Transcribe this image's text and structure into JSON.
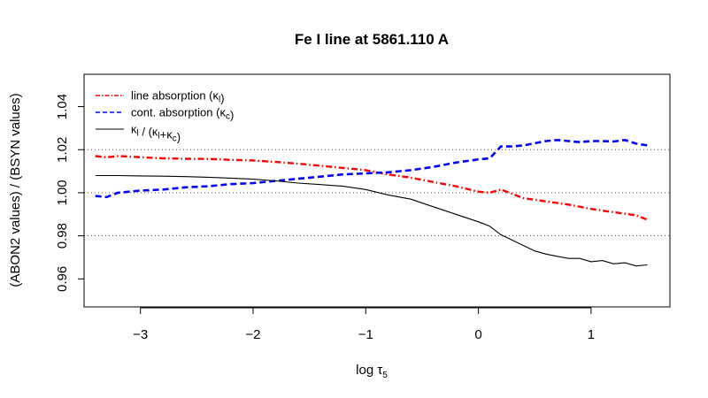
{
  "chart_data": {
    "type": "line",
    "title": "Fe I line at 5861.110 A",
    "xlabel": "log τ5",
    "ylabel": "(ABON2 values) / (BSYN values)",
    "xlim": [
      -3.5,
      1.7
    ],
    "ylim": [
      0.947,
      1.055
    ],
    "xticks": [
      -3,
      -2,
      -1,
      0,
      1
    ],
    "xtick_labels": [
      "−3",
      "−2",
      "−1",
      "0",
      "1"
    ],
    "yticks": [
      0.96,
      0.98,
      1.0,
      1.02,
      1.04
    ],
    "ytick_labels": [
      "0.96",
      "0.98",
      "1.00",
      "1.02",
      "1.04"
    ],
    "reference_lines": [
      0.98,
      1.0,
      1.02
    ],
    "legend_position": "top-left",
    "series": [
      {
        "name": "line absorption (κl)",
        "color": "#ff0000",
        "style": "dashdot",
        "x": [
          -3.4,
          -3.3,
          -3.2,
          -3.1,
          -3.0,
          -2.8,
          -2.6,
          -2.4,
          -2.2,
          -2.0,
          -1.8,
          -1.6,
          -1.4,
          -1.2,
          -1.0,
          -0.8,
          -0.6,
          -0.4,
          -0.2,
          0.0,
          0.1,
          0.2,
          0.3,
          0.4,
          0.6,
          0.8,
          1.0,
          1.2,
          1.4,
          1.5
        ],
        "y": [
          1.017,
          1.0165,
          1.017,
          1.0168,
          1.0165,
          1.016,
          1.0158,
          1.0157,
          1.0153,
          1.015,
          1.0143,
          1.0135,
          1.0125,
          1.0115,
          1.0105,
          1.0085,
          1.007,
          1.005,
          1.003,
          1.0005,
          1.0,
          1.0015,
          0.9995,
          0.9975,
          0.996,
          0.9945,
          0.9925,
          0.991,
          0.9895,
          0.9875
        ]
      },
      {
        "name": "cont. absorption (κc)",
        "color": "#0000ff",
        "style": "dashed",
        "x": [
          -3.4,
          -3.3,
          -3.2,
          -3.0,
          -2.8,
          -2.6,
          -2.4,
          -2.2,
          -2.0,
          -1.8,
          -1.6,
          -1.4,
          -1.2,
          -1.0,
          -0.8,
          -0.6,
          -0.4,
          -0.2,
          0.0,
          0.1,
          0.2,
          0.3,
          0.4,
          0.6,
          0.7,
          0.8,
          0.9,
          1.0,
          1.1,
          1.2,
          1.3,
          1.4,
          1.5
        ],
        "y": [
          0.9985,
          0.998,
          1.0,
          1.001,
          1.0015,
          1.0025,
          1.003,
          1.004,
          1.0045,
          1.0055,
          1.0065,
          1.0075,
          1.0085,
          1.009,
          1.0095,
          1.0105,
          1.012,
          1.014,
          1.0155,
          1.016,
          1.0215,
          1.0215,
          1.022,
          1.024,
          1.0245,
          1.024,
          1.0235,
          1.024,
          1.024,
          1.0238,
          1.0245,
          1.0228,
          1.022
        ]
      },
      {
        "name": "κl / (κl+κc)",
        "color": "#000000",
        "style": "solid",
        "x": [
          -3.4,
          -3.2,
          -3.0,
          -2.8,
          -2.6,
          -2.4,
          -2.2,
          -2.0,
          -1.8,
          -1.6,
          -1.4,
          -1.2,
          -1.0,
          -0.8,
          -0.6,
          -0.4,
          -0.2,
          0.0,
          0.1,
          0.2,
          0.3,
          0.4,
          0.5,
          0.6,
          0.7,
          0.8,
          0.9,
          1.0,
          1.1,
          1.2,
          1.3,
          1.4,
          1.5
        ],
        "y": [
          1.008,
          1.008,
          1.0078,
          1.0077,
          1.0075,
          1.0072,
          1.0068,
          1.0063,
          1.0055,
          1.0045,
          1.0038,
          1.003,
          1.0015,
          0.999,
          0.997,
          0.9935,
          0.99,
          0.9865,
          0.9845,
          0.9805,
          0.978,
          0.9755,
          0.973,
          0.9715,
          0.9705,
          0.9695,
          0.9695,
          0.968,
          0.9685,
          0.967,
          0.9675,
          0.966,
          0.9665
        ]
      }
    ]
  }
}
